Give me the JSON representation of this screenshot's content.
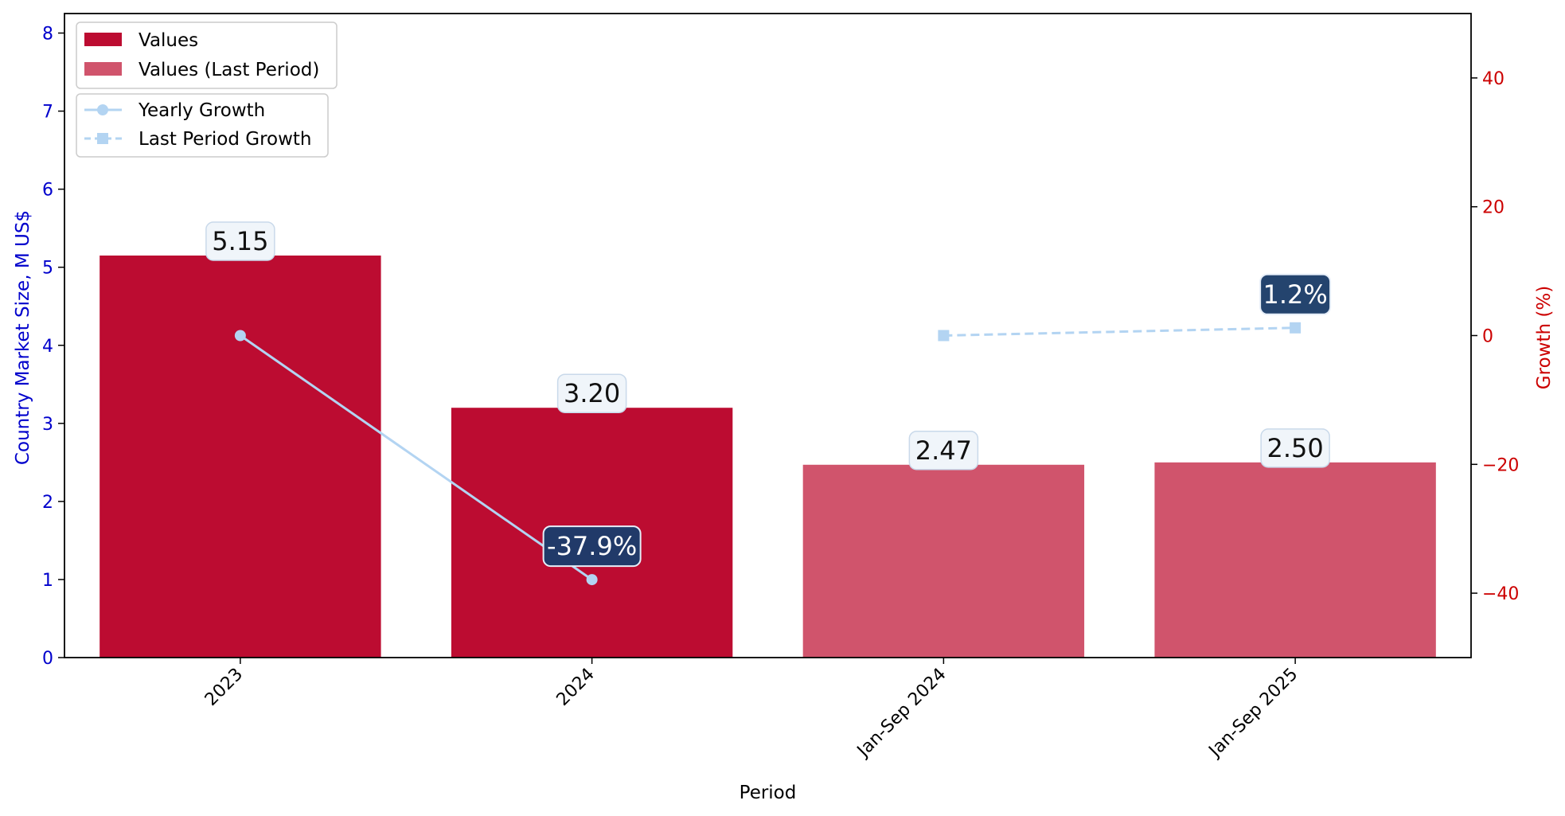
{
  "chart_data": {
    "type": "bar",
    "categories": [
      "2023",
      "2024",
      "Jan-Sep 2024",
      "Jan-Sep 2025"
    ],
    "xlabel": "Period",
    "ylabel": "Country Market Size, M US$",
    "ylabel_right": "Growth (%)",
    "ylim": [
      0,
      8.25
    ],
    "ylim_right": [
      -50,
      50
    ],
    "yticks": [
      "0",
      "1",
      "2",
      "3",
      "4",
      "5",
      "6",
      "7",
      "8"
    ],
    "yticks_right": [
      "−40",
      "−20",
      "0",
      "20",
      "40"
    ],
    "bar_series": [
      {
        "name": "Values",
        "color": "#bc0c31",
        "values": [
          5.15,
          3.2,
          null,
          null
        ]
      },
      {
        "name": "Values (Last Period)",
        "color": "#d0546c",
        "values": [
          null,
          null,
          2.47,
          2.5
        ]
      }
    ],
    "bar_labels": [
      "5.15",
      "3.20",
      "2.47",
      "2.50"
    ],
    "line_series": [
      {
        "name": "Yearly Growth",
        "color": "#b3d4f2",
        "style": "solid",
        "marker": "circle",
        "values": [
          0,
          -37.9,
          null,
          null
        ]
      },
      {
        "name": "Last Period Growth",
        "color": "#b3d4f2",
        "style": "dashed",
        "marker": "square",
        "values": [
          null,
          null,
          0,
          1.2
        ]
      }
    ],
    "growth_labels": [
      {
        "category": "2024",
        "value": -37.9,
        "text": "-37.9%"
      },
      {
        "category": "Jan-Sep 2025",
        "value": 1.2,
        "text": "1.2%"
      }
    ],
    "legend_placement": "top-left",
    "grid": false
  }
}
